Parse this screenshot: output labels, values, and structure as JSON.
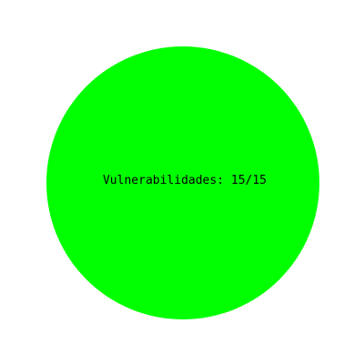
{
  "status": {
    "label": "Vulnerabilidades: 15/15",
    "fill_color": "#00ff00",
    "text_color": "#000000",
    "background_color": "#ffffff"
  }
}
